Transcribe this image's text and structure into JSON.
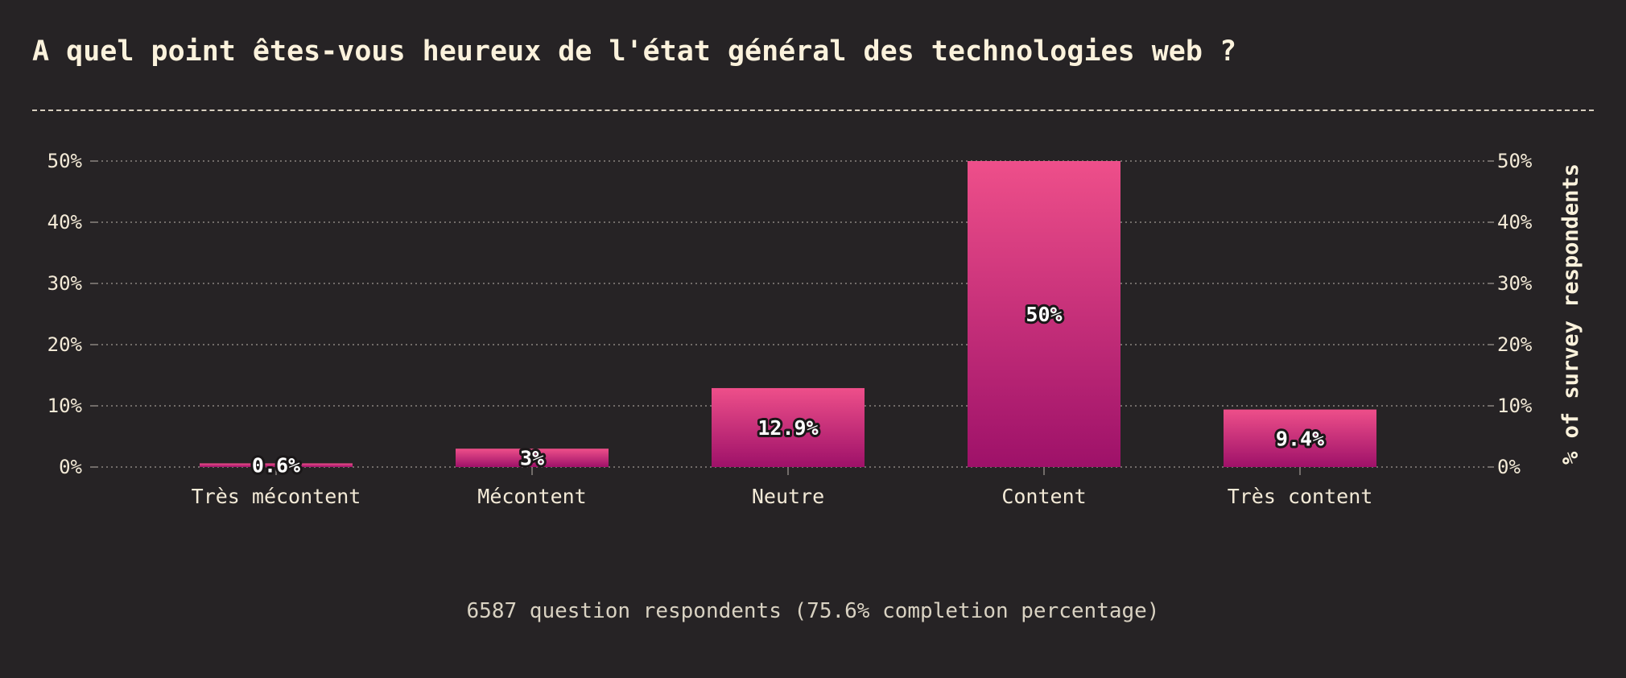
{
  "header": {
    "title": "A quel point êtes-vous heureux de l'état général des technologies web ?"
  },
  "footer": {
    "text": "6587 question respondents (75.6% completion percentage)"
  },
  "colors": {
    "background": "#262325",
    "bar_top": "#ee4f8a",
    "bar_bottom": "#9e1169",
    "text": "#f3ead7"
  },
  "chart_data": {
    "type": "bar",
    "title": "A quel point êtes-vous heureux de l'état général des technologies web ?",
    "xlabel": "",
    "ylabel": "% of survey respondents",
    "categories": [
      "Très mécontent",
      "Mécontent",
      "Neutre",
      "Content",
      "Très content"
    ],
    "values": [
      0.6,
      3,
      12.9,
      50,
      9.4
    ],
    "value_labels": [
      "0.6%",
      "3%",
      "12.9%",
      "50%",
      "9.4%"
    ],
    "ylim": [
      0,
      50
    ],
    "yticks": [
      0,
      10,
      20,
      30,
      40,
      50
    ],
    "ytick_labels": [
      "0%",
      "10%",
      "20%",
      "30%",
      "40%",
      "50%"
    ],
    "grid": true,
    "legend": "none"
  }
}
